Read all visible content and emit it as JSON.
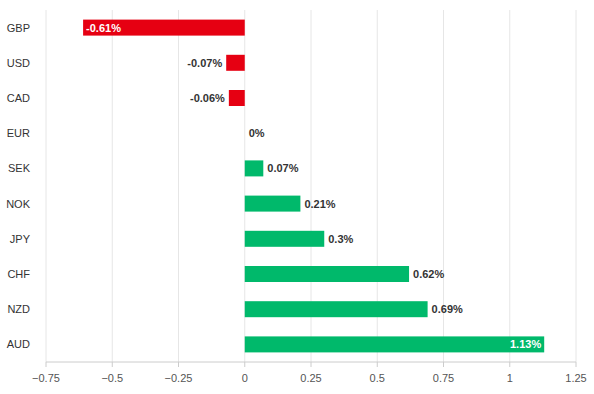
{
  "chart_data": {
    "type": "bar",
    "orientation": "horizontal",
    "categories": [
      "GBP",
      "USD",
      "CAD",
      "EUR",
      "SEK",
      "NOK",
      "JPY",
      "CHF",
      "NZD",
      "AUD"
    ],
    "values": [
      -0.61,
      -0.07,
      -0.06,
      0,
      0.07,
      0.21,
      0.3,
      0.62,
      0.69,
      1.13
    ],
    "value_labels": [
      "-0.61%",
      "-0.07%",
      "-0.06%",
      "0%",
      "0.07%",
      "0.21%",
      "0.3%",
      "0.62%",
      "0.69%",
      "1.13%"
    ],
    "colors": [
      "#e60012",
      "#e60012",
      "#e60012",
      "#00b96b",
      "#00b96b",
      "#00b96b",
      "#00b96b",
      "#00b96b",
      "#00b96b",
      "#00b96b"
    ],
    "xlim": [
      -0.75,
      1.25
    ],
    "xticks": [
      {
        "value": -0.75,
        "label": "−0.75"
      },
      {
        "value": -0.5,
        "label": "−0.5"
      },
      {
        "value": -0.25,
        "label": "−0.25"
      },
      0,
      0.25,
      0.5,
      0.75,
      1,
      1.25
    ],
    "grid": true,
    "data_labels": true
  }
}
